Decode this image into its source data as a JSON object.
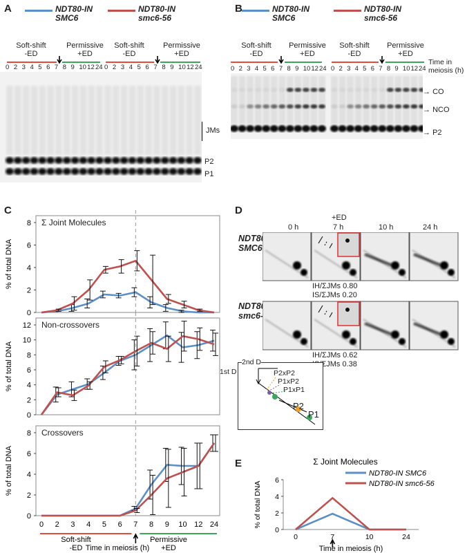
{
  "panels": {
    "A": "A",
    "B": "B",
    "C": "C",
    "D": "D",
    "E": "E"
  },
  "strains": {
    "wt_line1": "NDT80-IN",
    "wt_line2": "SMC6",
    "mut_line1": "NDT80-IN",
    "mut_line2": "smc6-56"
  },
  "conditions": {
    "soft_shift": "Soft-shift",
    "minus_ed": "-ED",
    "permissive": "Permissive",
    "plus_ed": "+ED"
  },
  "lanes": [
    "0",
    "2",
    "3",
    "4",
    "5",
    "6",
    "7",
    "8",
    "9",
    "10",
    "12",
    "24"
  ],
  "gel_a_labels": {
    "jms": "JMs",
    "p2": "P2",
    "p1": "P1"
  },
  "gel_b_labels": {
    "time_line1": "Time in",
    "time_line2": "meiosis (h)",
    "co": "CO",
    "nco": "NCO",
    "p2": "P2"
  },
  "panel_c": {
    "ylabel": "% of total DNA",
    "xlabel": "Time in meiosis (h)",
    "bottom_left_1": "Soft-shift",
    "bottom_left_2": "-ED",
    "bottom_right_1": "Permissive",
    "bottom_right_2": "+ED"
  },
  "panel_d": {
    "ed_label": "+ED",
    "times": [
      "0 h",
      "7 h",
      "10 h",
      "24 h"
    ],
    "wt_ratio_ih": "IH/ΣJMs 0.80",
    "wt_ratio_is": "IS/ΣJMs 0.20",
    "mut_ratio_ih": "IH/ΣJMs 0.62",
    "mut_ratio_is": "IS/ΣJMs 0.38",
    "schematic": {
      "d2": "2nd D",
      "d1": "1st D",
      "p2xp2": "P2xP2",
      "p1xp2": "P1xP2",
      "p1xp1": "P1xP1",
      "p2": "P2",
      "p1": "P1"
    }
  },
  "colors": {
    "wt": "#5b8fc7",
    "mut": "#c0504d",
    "green": "#3aa85c",
    "red": "#e04b3a"
  },
  "chart_data": [
    {
      "type": "line",
      "title": "Σ Joint Molecules",
      "xlabel": "",
      "ylabel": "% of total DNA",
      "categories": [
        "0",
        "2",
        "3",
        "4",
        "5",
        "6",
        "7",
        "8",
        "9",
        "10",
        "12",
        "24"
      ],
      "ylim": [
        0,
        8
      ],
      "yticks": [
        0,
        2,
        4,
        6,
        8
      ],
      "series": [
        {
          "name": "NDT80-IN SMC6",
          "values": [
            0,
            0.1,
            0.4,
            0.8,
            1.6,
            1.5,
            1.8,
            0.9,
            0.4,
            0.1,
            0,
            0
          ],
          "err": [
            0,
            0,
            0.3,
            0.4,
            0.3,
            0.2,
            0.4,
            0.5,
            0.3,
            0.1,
            0,
            0
          ]
        },
        {
          "name": "NDT80-IN smc6-56",
          "values": [
            0,
            0.2,
            0.8,
            2.0,
            3.8,
            4.1,
            4.6,
            2.9,
            1.2,
            0.7,
            0.2,
            0
          ],
          "err": [
            0,
            0.1,
            0.6,
            0.9,
            0.3,
            0.6,
            0.9,
            2.2,
            0.4,
            0.3,
            0.1,
            0
          ]
        }
      ]
    },
    {
      "type": "line",
      "title": "Non-crossovers",
      "xlabel": "",
      "ylabel": "% of total DNA",
      "categories": [
        "0",
        "2",
        "3",
        "4",
        "5",
        "6",
        "7",
        "8",
        "9",
        "10",
        "12",
        "24"
      ],
      "ylim": [
        0,
        12
      ],
      "yticks": [
        0,
        2,
        4,
        6,
        8,
        10,
        12
      ],
      "series": [
        {
          "name": "NDT80-IN SMC6",
          "values": [
            0,
            2.7,
            3.4,
            4.1,
            5.6,
            7.2,
            8.0,
            9.3,
            10.6,
            9.0,
            9.3,
            9.9
          ],
          "err": [
            0,
            1.0,
            1.0,
            0.7,
            0.9,
            0.6,
            2.0,
            2.2,
            1.8,
            2.0,
            1.8,
            1.4
          ]
        },
        {
          "name": "NDT80-IN smc6-56",
          "values": [
            0,
            3.0,
            2.6,
            3.9,
            6.4,
            7.3,
            8.5,
            9.6,
            8.8,
            10.5,
            10.1,
            9.4
          ],
          "err": [
            0,
            0.6,
            0.7,
            0.5,
            0.8,
            0.5,
            2.0,
            1.5,
            1.7,
            2.0,
            1.5,
            1.5
          ]
        }
      ]
    },
    {
      "type": "line",
      "title": "Crossovers",
      "xlabel": "Time in meiosis (h)",
      "ylabel": "% of total DNA",
      "categories": [
        "0",
        "2",
        "3",
        "4",
        "5",
        "6",
        "7",
        "8",
        "9",
        "10",
        "12",
        "24"
      ],
      "ylim": [
        0,
        8
      ],
      "yticks": [
        0,
        2,
        4,
        6,
        8
      ],
      "series": [
        {
          "name": "NDT80-IN SMC6",
          "values": [
            0,
            0,
            0,
            0,
            0,
            0,
            0.7,
            3.0,
            4.9,
            4.8,
            4.8,
            7.0
          ],
          "err": [
            0,
            0,
            0,
            0,
            0,
            0,
            0.2,
            1.4,
            1.6,
            1.8,
            2.2,
            0.8
          ]
        },
        {
          "name": "NDT80-IN smc6-56",
          "values": [
            0,
            0,
            0,
            0,
            0,
            0,
            0.5,
            2.0,
            3.6,
            4.2,
            4.8,
            7.0
          ],
          "err": [
            0,
            0,
            0,
            0,
            0,
            0,
            0.2,
            1.9,
            2.8,
            2.3,
            2.2,
            0.8
          ]
        }
      ]
    },
    {
      "type": "line",
      "title": "Σ Joint Molecules",
      "xlabel": "Time in meiosis (h)",
      "ylabel": "% of total DNA",
      "categories": [
        "0",
        "7",
        "10",
        "24"
      ],
      "ylim": [
        0,
        6
      ],
      "yticks": [
        0,
        2,
        4,
        6
      ],
      "legend": "top-right",
      "series": [
        {
          "name": "NDT80-IN SMC6",
          "values": [
            0,
            1.9,
            0,
            0
          ]
        },
        {
          "name": "NDT80-IN smc6-56",
          "values": [
            0,
            3.8,
            0,
            0
          ]
        }
      ]
    }
  ]
}
